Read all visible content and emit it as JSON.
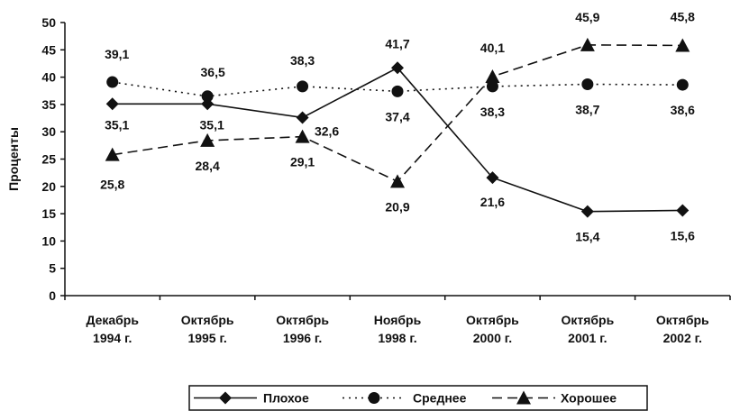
{
  "chart_data": {
    "type": "line",
    "title": "",
    "xlabel": "",
    "ylabel": "Проценты",
    "ylim": [
      0,
      50
    ],
    "yticks": [
      "0",
      "5",
      "10",
      "15",
      "20",
      "25",
      "30",
      "35",
      "40",
      "45",
      "50"
    ],
    "categories": [
      [
        "Декабрь",
        "1994 г."
      ],
      [
        "Октябрь",
        "1995 г."
      ],
      [
        "Октябрь",
        "1996 г."
      ],
      [
        "Ноябрь",
        "1998 г."
      ],
      [
        "Октябрь",
        "2000 г."
      ],
      [
        "Октябрь",
        "2001 г."
      ],
      [
        "Октябрь",
        "2002 г."
      ]
    ],
    "grid": false,
    "legend_position": "bottom",
    "series": [
      {
        "name": "Плохое",
        "marker": "diamond",
        "dash": "solid",
        "values": [
          35.1,
          35.1,
          32.6,
          41.7,
          21.6,
          15.4,
          15.6
        ],
        "labels": [
          "35,1",
          "35,1",
          "32,6",
          "41,7",
          "21,6",
          "15,4",
          "15,6"
        ]
      },
      {
        "name": "Среднее",
        "marker": "circle",
        "dash": "dotted",
        "values": [
          39.1,
          36.5,
          38.3,
          37.4,
          38.3,
          38.7,
          38.6
        ],
        "labels": [
          "39,1",
          "36,5",
          "38,3",
          "37,4",
          "38,3",
          "38,7",
          "38,6"
        ]
      },
      {
        "name": "Хорошее",
        "marker": "triangle",
        "dash": "dashed",
        "values": [
          25.8,
          28.4,
          29.1,
          20.9,
          40.1,
          45.9,
          45.8
        ],
        "labels": [
          "25,8",
          "28,4",
          "29,1",
          "20,9",
          "40,1",
          "45,9",
          "45,8"
        ]
      }
    ]
  }
}
